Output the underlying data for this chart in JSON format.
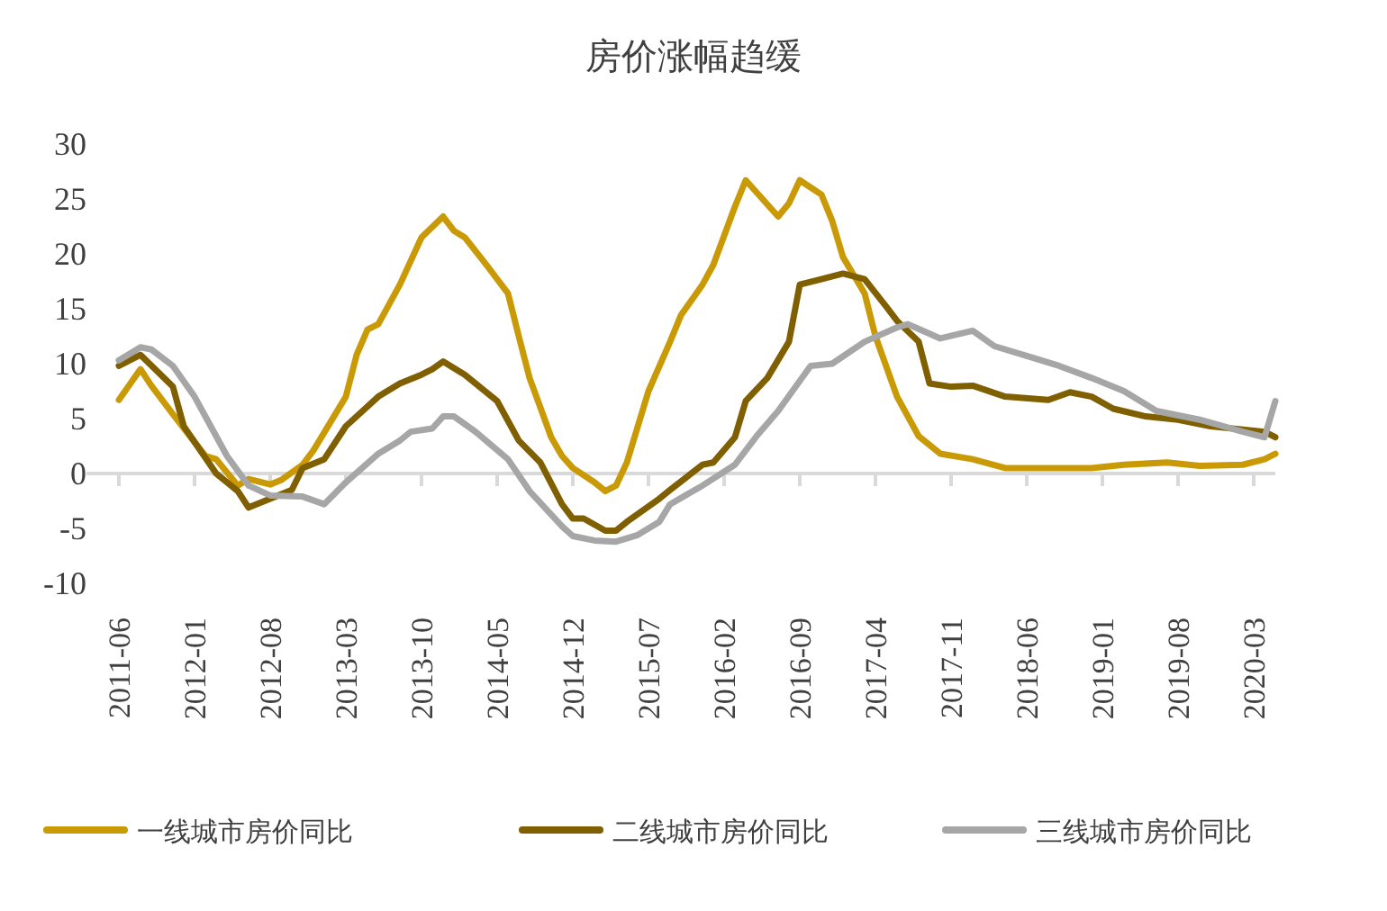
{
  "chart_data": {
    "type": "line",
    "title": "房价涨幅趋缓",
    "xlim": [
      "2011-06",
      "2020-05"
    ],
    "xticks": [
      "2011-06",
      "2012-01",
      "2012-08",
      "2013-03",
      "2013-10",
      "2014-05",
      "2014-12",
      "2015-07",
      "2016-02",
      "2016-09",
      "2017-04",
      "2017-11",
      "2018-06",
      "2019-01",
      "2019-08",
      "2020-03"
    ],
    "ylim": [
      -10,
      30
    ],
    "yticks": [
      -10,
      -5,
      0,
      5,
      10,
      15,
      20,
      25,
      30
    ],
    "grid": false,
    "legend": "bottom",
    "marker": "none",
    "line_style": "solid",
    "ref_lines": [
      {
        "axis": "y",
        "value": 0,
        "color": "#d9d9d9"
      }
    ],
    "series": [
      {
        "name": "一线城市房价同比",
        "color": "#c99a06",
        "x": [
          "2011-06",
          "2011-08",
          "2011-09",
          "2011-11",
          "2012-02",
          "2012-03",
          "2012-05",
          "2012-06",
          "2012-08",
          "2012-09",
          "2012-11",
          "2012-12",
          "2013-03",
          "2013-04",
          "2013-05",
          "2013-06",
          "2013-08",
          "2013-10",
          "2013-12",
          "2014-01",
          "2014-02",
          "2014-04",
          "2014-06",
          "2014-07",
          "2014-08",
          "2014-09",
          "2014-10",
          "2014-11",
          "2014-12",
          "2015-02",
          "2015-03",
          "2015-04",
          "2015-05",
          "2015-07",
          "2015-09",
          "2015-10",
          "2015-12",
          "2016-01",
          "2016-03",
          "2016-04",
          "2016-07",
          "2016-08",
          "2016-09",
          "2016-11",
          "2016-12",
          "2017-01",
          "2017-03",
          "2017-04",
          "2017-06",
          "2017-08",
          "2017-10",
          "2018-01",
          "2018-04",
          "2018-08",
          "2018-12",
          "2019-03",
          "2019-07",
          "2019-10",
          "2020-02",
          "2020-04",
          "2020-05"
        ],
        "values": [
          6.7,
          9.5,
          8.0,
          5.4,
          1.6,
          1.3,
          -1.1,
          -0.5,
          -1.0,
          -0.6,
          0.8,
          2.1,
          7.0,
          10.8,
          13.1,
          13.6,
          17.2,
          21.5,
          23.4,
          22.1,
          21.5,
          19.0,
          16.4,
          12.5,
          8.7,
          6.0,
          3.3,
          1.6,
          0.5,
          -0.8,
          -1.6,
          -1.1,
          1.0,
          7.5,
          12.0,
          14.4,
          17.2,
          19.0,
          24.3,
          26.7,
          23.4,
          24.6,
          26.7,
          25.4,
          23.0,
          19.7,
          16.4,
          12.5,
          7.0,
          3.4,
          1.8,
          1.3,
          0.5,
          0.5,
          0.5,
          0.8,
          1.0,
          0.7,
          0.8,
          1.3,
          1.8
        ]
      },
      {
        "name": "二线城市房价同比",
        "color": "#7f5f00",
        "x": [
          "2011-06",
          "2011-08",
          "2011-11",
          "2011-12",
          "2012-03",
          "2012-05",
          "2012-06",
          "2012-08",
          "2012-10",
          "2012-11",
          "2013-01",
          "2013-03",
          "2013-06",
          "2013-08",
          "2013-10",
          "2013-11",
          "2013-12",
          "2014-02",
          "2014-05",
          "2014-07",
          "2014-09",
          "2014-11",
          "2014-12",
          "2015-01",
          "2015-03",
          "2015-04",
          "2015-05",
          "2015-08",
          "2015-09",
          "2015-12",
          "2016-01",
          "2016-03",
          "2016-04",
          "2016-06",
          "2016-08",
          "2016-09",
          "2016-11",
          "2017-01",
          "2017-03",
          "2017-05",
          "2017-06",
          "2017-08",
          "2017-09",
          "2017-11",
          "2018-01",
          "2018-04",
          "2018-08",
          "2018-10",
          "2018-12",
          "2019-02",
          "2019-05",
          "2019-08",
          "2019-11",
          "2020-04",
          "2020-05"
        ],
        "values": [
          9.8,
          10.8,
          7.9,
          4.3,
          0.0,
          -1.6,
          -3.1,
          -2.3,
          -1.5,
          0.5,
          1.3,
          4.3,
          7.0,
          8.2,
          9.0,
          9.5,
          10.2,
          9.0,
          6.6,
          3.0,
          1.0,
          -2.8,
          -4.1,
          -4.1,
          -5.2,
          -5.2,
          -4.4,
          -2.3,
          -1.5,
          0.8,
          1.0,
          3.3,
          6.6,
          8.7,
          12.0,
          17.2,
          17.7,
          18.2,
          17.7,
          15.2,
          13.9,
          12.0,
          8.2,
          7.9,
          8.0,
          7.0,
          6.7,
          7.4,
          7.0,
          5.9,
          5.2,
          4.9,
          4.3,
          3.8,
          3.3
        ]
      },
      {
        "name": "三线城市房价同比",
        "color": "#a6a6a6",
        "x": [
          "2011-06",
          "2011-08",
          "2011-09",
          "2011-11",
          "2012-01",
          "2012-03",
          "2012-04",
          "2012-06",
          "2012-08",
          "2012-11",
          "2013-01",
          "2013-03",
          "2013-06",
          "2013-08",
          "2013-09",
          "2013-11",
          "2013-12",
          "2014-01",
          "2014-03",
          "2014-06",
          "2014-08",
          "2014-11",
          "2014-12",
          "2015-02",
          "2015-04",
          "2015-06",
          "2015-08",
          "2015-09",
          "2015-12",
          "2016-03",
          "2016-05",
          "2016-07",
          "2016-10",
          "2016-12",
          "2017-03",
          "2017-06",
          "2017-07",
          "2017-10",
          "2018-01",
          "2018-03",
          "2018-06",
          "2018-09",
          "2018-12",
          "2019-03",
          "2019-06",
          "2019-10",
          "2020-02",
          "2020-04",
          "2020-05"
        ],
        "values": [
          10.3,
          11.5,
          11.3,
          9.8,
          7.0,
          3.4,
          1.6,
          -1.1,
          -2.0,
          -2.1,
          -2.8,
          -0.8,
          1.8,
          3.0,
          3.8,
          4.1,
          5.2,
          5.2,
          3.8,
          1.3,
          -1.6,
          -4.8,
          -5.7,
          -6.1,
          -6.2,
          -5.6,
          -4.4,
          -2.8,
          -1.1,
          0.8,
          3.4,
          5.7,
          9.8,
          10.0,
          12.0,
          13.3,
          13.6,
          12.3,
          13.0,
          11.6,
          10.7,
          9.8,
          8.7,
          7.5,
          5.7,
          4.9,
          3.8,
          3.3,
          6.6
        ]
      }
    ]
  }
}
